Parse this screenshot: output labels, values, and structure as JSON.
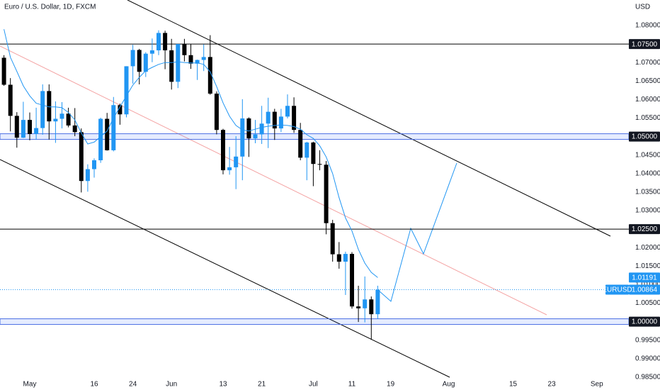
{
  "chart_data": {
    "type": "candlestick",
    "title": "Euro / U.S. Dollar, 1D, FXCM",
    "currency": "USD",
    "categories": [
      "04-26",
      "04-27",
      "04-28",
      "04-29",
      "05-02",
      "05-03",
      "05-04",
      "05-05",
      "05-06",
      "05-09",
      "05-10",
      "05-11",
      "05-12",
      "05-13",
      "05-16",
      "05-17",
      "05-18",
      "05-19",
      "05-20",
      "05-23",
      "05-24",
      "05-25",
      "05-26",
      "05-27",
      "05-30",
      "05-31",
      "06-01",
      "06-02",
      "06-03",
      "06-06",
      "06-07",
      "06-08",
      "06-09",
      "06-10",
      "06-13",
      "06-14",
      "06-15",
      "06-16",
      "06-17",
      "06-20",
      "06-21",
      "06-22",
      "06-23",
      "06-24",
      "06-27",
      "06-28",
      "06-29",
      "06-30",
      "07-01",
      "07-04",
      "07-05",
      "07-06",
      "07-07",
      "07-08",
      "07-11",
      "07-12",
      "07-13",
      "07-14",
      "07-15"
    ],
    "open": [
      1.0713,
      1.064,
      1.0556,
      1.0497,
      1.0545,
      1.0507,
      1.0523,
      1.0623,
      1.0541,
      1.0548,
      1.0562,
      1.053,
      1.0512,
      1.038,
      1.0412,
      1.0436,
      1.0548,
      1.0463,
      1.0585,
      1.056,
      1.069,
      1.0734,
      1.0675,
      1.0724,
      1.0733,
      1.078,
      1.0733,
      1.0648,
      1.075,
      1.072,
      1.0697,
      1.0707,
      1.0715,
      1.0616,
      1.0518,
      1.0409,
      1.0417,
      1.0446,
      1.0549,
      1.0495,
      1.0506,
      1.0535,
      1.0567,
      1.0522,
      1.0554,
      1.0583,
      1.0518,
      1.0443,
      1.0484,
      1.0426,
      1.0424,
      1.0266,
      1.0182,
      1.0162,
      1.0183,
      1.0041,
      1.0036,
      1.006,
      1.002
    ],
    "high": [
      1.072,
      1.0658,
      1.0566,
      1.0594,
      1.0565,
      1.0578,
      1.0641,
      1.0641,
      1.0595,
      1.0593,
      1.0578,
      1.0577,
      1.0522,
      1.0425,
      1.0441,
      1.0551,
      1.0564,
      1.0607,
      1.0589,
      1.069,
      1.0748,
      1.0737,
      1.0728,
      1.0765,
      1.0787,
      1.0786,
      1.0764,
      1.075,
      1.0764,
      1.075,
      1.0708,
      1.0749,
      1.0774,
      1.0622,
      1.0521,
      1.0472,
      1.0501,
      1.0601,
      1.0552,
      1.0545,
      1.0583,
      1.0605,
      1.0575,
      1.0575,
      1.0614,
      1.0606,
      1.0537,
      1.0486,
      1.0486,
      1.0463,
      1.0434,
      1.0275,
      1.0215,
      1.0189,
      1.0188,
      1.0097,
      1.0122,
      1.0068,
      1.0097
    ],
    "low": [
      1.0637,
      1.0514,
      1.047,
      1.0496,
      1.049,
      1.0492,
      1.0505,
      1.0492,
      1.0483,
      1.0522,
      1.0525,
      1.0501,
      1.0349,
      1.0351,
      1.0389,
      1.0429,
      1.0462,
      1.046,
      1.0532,
      1.0552,
      1.0643,
      1.0641,
      1.0661,
      1.0701,
      1.072,
      1.0682,
      1.0627,
      1.0631,
      1.0703,
      1.0683,
      1.0653,
      1.0677,
      1.0613,
      1.0506,
      1.0398,
      1.0397,
      1.0358,
      1.0382,
      1.0445,
      1.0482,
      1.048,
      1.0469,
      1.0491,
      1.0512,
      1.0549,
      1.051,
      1.0436,
      1.0382,
      1.0366,
      1.0409,
      1.0236,
      1.0162,
      1.0143,
      1.0072,
      1.0035,
      0.9999,
      0.9998,
      0.9951,
      1.0007
    ],
    "close": [
      1.064,
      1.0556,
      1.0497,
      1.0545,
      1.0507,
      1.0523,
      1.0623,
      1.0541,
      1.0548,
      1.0562,
      1.053,
      1.0512,
      1.038,
      1.0412,
      1.0436,
      1.0548,
      1.0463,
      1.0585,
      1.056,
      1.069,
      1.0734,
      1.0675,
      1.0724,
      1.0733,
      1.078,
      1.0733,
      1.0648,
      1.075,
      1.072,
      1.0697,
      1.0707,
      1.0715,
      1.0616,
      1.0518,
      1.0409,
      1.0417,
      1.0446,
      1.0549,
      1.0495,
      1.0506,
      1.0535,
      1.0567,
      1.0522,
      1.0554,
      1.0583,
      1.0518,
      1.0443,
      1.0484,
      1.0426,
      1.0424,
      1.0266,
      1.0182,
      1.0162,
      1.0183,
      1.0041,
      1.0036,
      1.006,
      1.002,
      1.00864
    ],
    "up_color": "#2196f3",
    "down_color": "#000000",
    "ma": {
      "color": "#2196f3",
      "last_label": "1.01191",
      "values": [
        1.079,
        1.0714,
        1.0676,
        1.0637,
        1.061,
        1.059,
        1.0585,
        1.058,
        1.058,
        1.0578,
        1.0565,
        1.0545,
        1.051,
        1.048,
        1.0485,
        1.05,
        1.0515,
        1.055,
        1.058,
        1.061,
        1.0639,
        1.066,
        1.0678,
        1.0687,
        1.0695,
        1.07,
        1.07,
        1.0702,
        1.07,
        1.0699,
        1.0699,
        1.0695,
        1.0675,
        1.0635,
        1.0591,
        1.0555,
        1.053,
        1.0518,
        1.0515,
        1.052,
        1.0525,
        1.0528,
        1.053,
        1.0531,
        1.053,
        1.0527,
        1.052,
        1.0505,
        1.0495,
        1.0475,
        1.0445,
        1.04,
        1.0335,
        1.028,
        1.0245,
        1.0195,
        1.0158,
        1.0133,
        1.01191
      ]
    },
    "last_price": {
      "symbol": "EURUSD",
      "label": "1.00864",
      "color": "#2196f3"
    },
    "levels": [
      {
        "value": 1.075,
        "label": "1.07500",
        "style": "line"
      },
      {
        "value": 1.05,
        "label": "1.05000",
        "style": "band"
      },
      {
        "value": 1.025,
        "label": "1.02500",
        "style": "line"
      },
      {
        "value": 1.0,
        "label": "1.00000",
        "style": "band"
      }
    ],
    "ylim": [
      0.9844,
      1.0869
    ],
    "yticks": [
      {
        "value": 1.08,
        "label": "1.08000"
      },
      {
        "value": 1.075,
        "label": "1.07500"
      },
      {
        "value": 1.07,
        "label": "1.07000"
      },
      {
        "value": 1.065,
        "label": "1.06500"
      },
      {
        "value": 1.06,
        "label": "1.06000"
      },
      {
        "value": 1.055,
        "label": "1.05500"
      },
      {
        "value": 1.05,
        "label": "1.05000"
      },
      {
        "value": 1.045,
        "label": "1.04500"
      },
      {
        "value": 1.04,
        "label": "1.04000"
      },
      {
        "value": 1.035,
        "label": "1.03500"
      },
      {
        "value": 1.03,
        "label": "1.03000"
      },
      {
        "value": 1.025,
        "label": "1.02500"
      },
      {
        "value": 1.02,
        "label": "1.02000"
      },
      {
        "value": 1.015,
        "label": "1.01500"
      },
      {
        "value": 1.01,
        "label": "1.01000"
      },
      {
        "value": 1.005,
        "label": "1.00500"
      },
      {
        "value": 1.0,
        "label": "1.00000"
      },
      {
        "value": 0.995,
        "label": "0.99500"
      },
      {
        "value": 0.99,
        "label": "0.99000"
      },
      {
        "value": 0.985,
        "label": "0.98500"
      }
    ],
    "xticks": [
      {
        "value": "05-02",
        "label": "May"
      },
      {
        "value": "05-16",
        "label": "16"
      },
      {
        "value": "05-24",
        "label": "24"
      },
      {
        "value": "06-01",
        "label": "Jun"
      },
      {
        "value": "06-13",
        "label": "13"
      },
      {
        "value": "06-21",
        "label": "21"
      },
      {
        "value": "07-01",
        "label": "Jul"
      },
      {
        "value": "07-11",
        "label": "11"
      },
      {
        "value": "07-19",
        "label": "19"
      },
      {
        "value": "08-01",
        "label": "Aug"
      },
      {
        "value": "08-15",
        "label": "15"
      },
      {
        "value": "08-23",
        "label": "23"
      },
      {
        "value": "09-01",
        "label": "Sep"
      }
    ],
    "grid": false
  }
}
